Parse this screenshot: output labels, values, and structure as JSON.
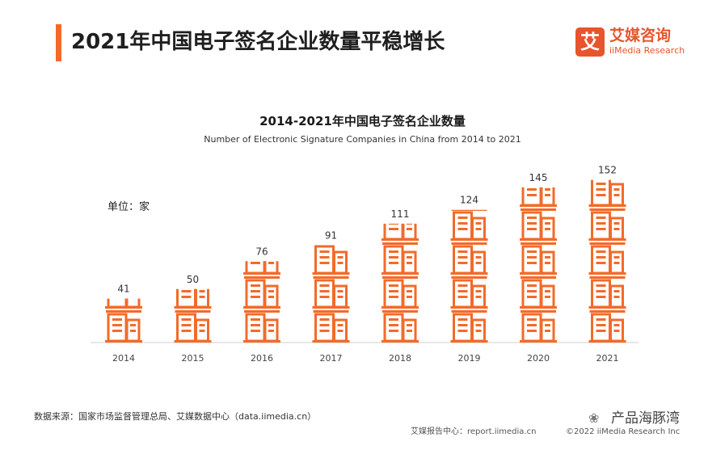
{
  "header": {
    "title": "2021年中国电子签名企业数量平稳增长"
  },
  "brand": {
    "logo_char": "艾",
    "name_cn": "艾媒咨询",
    "name_en": "iiMedia Research"
  },
  "chart_data": {
    "type": "bar",
    "title": "2014-2021年中国电子签名企业数量",
    "subtitle": "Number of Electronic Signature Companies in China from 2014 to 2021",
    "unit_label": "单位：家",
    "categories": [
      "2014",
      "2015",
      "2016",
      "2017",
      "2018",
      "2019",
      "2020",
      "2021"
    ],
    "values": [
      41,
      50,
      76,
      91,
      111,
      124,
      145,
      152
    ],
    "ylim": [
      0,
      160
    ],
    "grid": false,
    "legend": "none",
    "icon": "building-icon",
    "bar_color": "#f26b2a"
  },
  "footer": {
    "source": "数据来源：国家市场监督管理总局、艾媒数据中心（data.iimedia.cn）",
    "report": "艾媒报告中心：report.iimedia.cn",
    "copyright": "©2022 iiMedia Research Inc"
  },
  "watermark": {
    "text": "产品海豚湾"
  }
}
